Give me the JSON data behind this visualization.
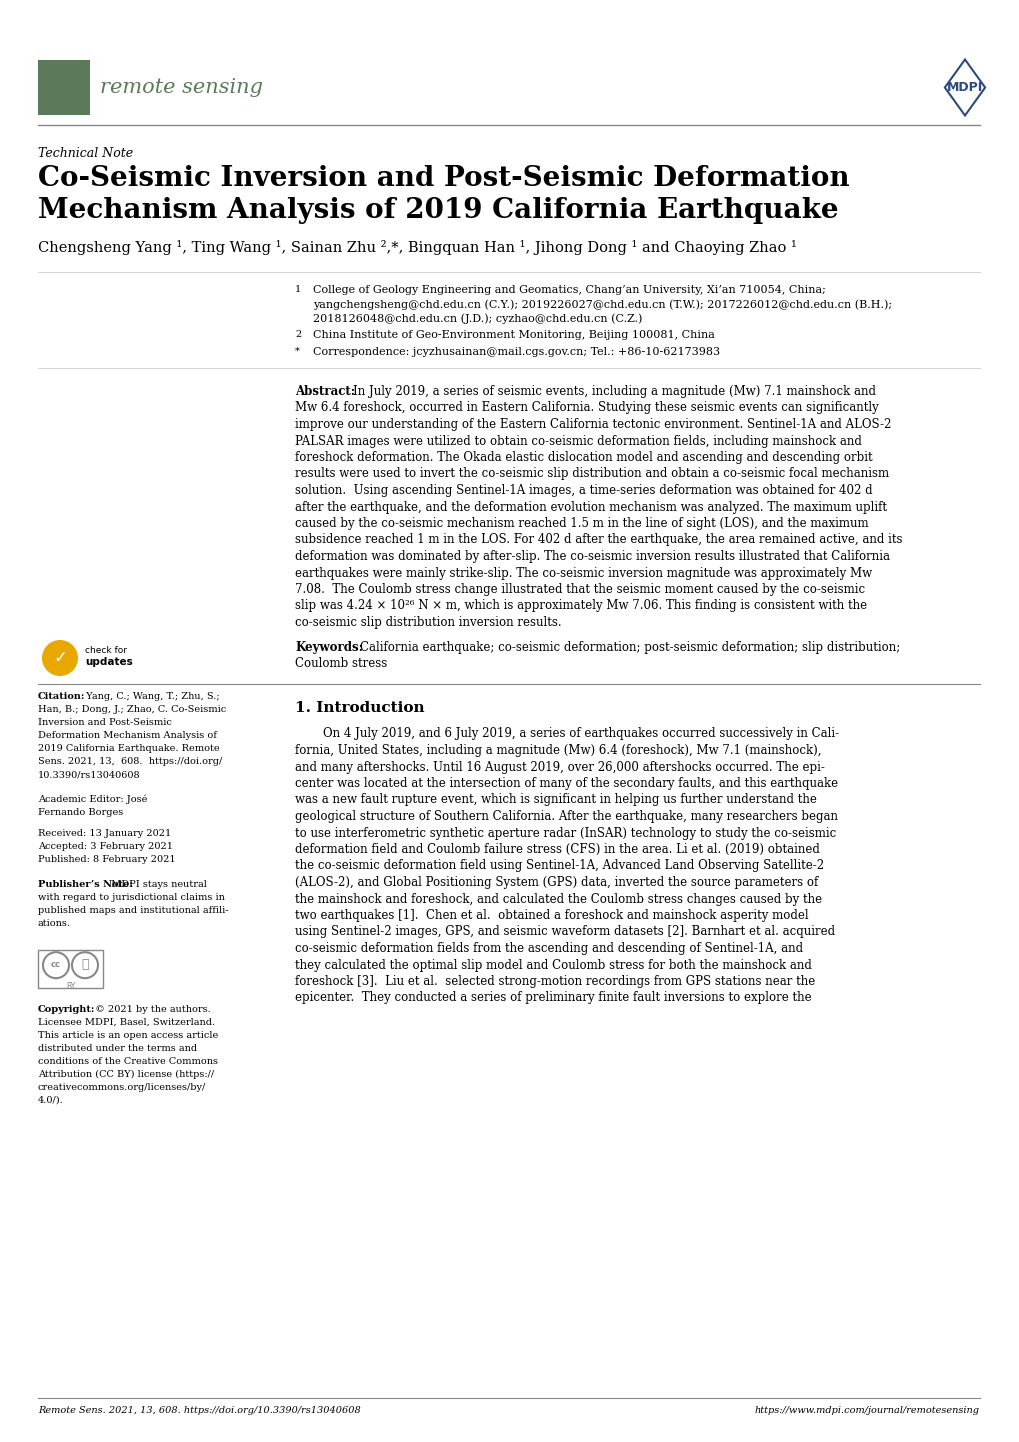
{
  "journal_name": "remote sensing",
  "journal_color": "#5a7a5a",
  "mdpi_color": "#2d4a7a",
  "article_type": "Technical Note",
  "title_line1": "Co-Seismic Inversion and Post-Seismic Deformation",
  "title_line2": "Mechanism Analysis of 2019 California Earthquake",
  "authors": "Chengsheng Yang ¹, Ting Wang ¹, Sainan Zhu ²,*, Bingquan Han ¹, Jihong Dong ¹ and Chaoying Zhao ¹",
  "affil1_num": "1",
  "affil1": "College of Geology Engineering and Geomatics, Chang’an University, Xi’an 710054, China;",
  "affil1b": "yangchengsheng@chd.edu.cn (C.Y.); 2019226027@chd.edu.cn (T.W.); 2017226012@chd.edu.cn (B.H.);",
  "affil1c": "2018126048@chd.edu.cn (J.D.); cyzhao@chd.edu.cn (C.Z.)",
  "affil2_num": "2",
  "affil2": "China Institute of Geo-Environment Monitoring, Beijing 100081, China",
  "affil3_num": "*",
  "affil3": "Correspondence: jcyzhusainan@mail.cgs.gov.cn; Tel.: +86-10-62173983",
  "abstract_label": "Abstract:",
  "abstract_lines": [
    "In July 2019, a series of seismic events, including a magnitude (Mw) 7.1 mainshock and",
    "Mw 6.4 foreshock, occurred in Eastern California. Studying these seismic events can significantly",
    "improve our understanding of the Eastern California tectonic environment. Sentinel-1A and ALOS-2",
    "PALSAR images were utilized to obtain co-seismic deformation fields, including mainshock and",
    "foreshock deformation. The Okada elastic dislocation model and ascending and descending orbit",
    "results were used to invert the co-seismic slip distribution and obtain a co-seismic focal mechanism",
    "solution.  Using ascending Sentinel-1A images, a time-series deformation was obtained for 402 d",
    "after the earthquake, and the deformation evolution mechanism was analyzed. The maximum uplift",
    "caused by the co-seismic mechanism reached 1.5 m in the line of sight (LOS), and the maximum",
    "subsidence reached 1 m in the LOS. For 402 d after the earthquake, the area remained active, and its",
    "deformation was dominated by after-slip. The co-seismic inversion results illustrated that California",
    "earthquakes were mainly strike-slip. The co-seismic inversion magnitude was approximately Mw",
    "7.08.  The Coulomb stress change illustrated that the seismic moment caused by the co-seismic",
    "slip was 4.24 × 10²⁶ N × m, which is approximately Mw 7.06. This finding is consistent with the",
    "co-seismic slip distribution inversion results."
  ],
  "keywords_label": "Keywords:",
  "keywords_line1": "California earthquake; co-seismic deformation; post-seismic deformation; slip distribution;",
  "keywords_line2": "Coulomb stress",
  "section1_title": "1. Introduction",
  "intro_indent": "On 4 July 2019, and 6 July 2019, a series of earthquakes occurred successively in Cali-",
  "intro_lines": [
    "On 4 July 2019, and 6 July 2019, a series of earthquakes occurred successively in Cali-",
    "fornia, United States, including a magnitude (Mw) 6.4 (foreshock), Mw 7.1 (mainshock),",
    "and many aftershocks. Until 16 August 2019, over 26,000 aftershocks occurred. The epi-",
    "center was located at the intersection of many of the secondary faults, and this earthquake",
    "was a new fault rupture event, which is significant in helping us further understand the",
    "geological structure of Southern California. After the earthquake, many researchers began",
    "to use interferometric synthetic aperture radar (InSAR) technology to study the co-seismic",
    "deformation field and Coulomb failure stress (CFS) in the area. Li et al. (2019) obtained",
    "the co-seismic deformation field using Sentinel-1A, Advanced Land Observing Satellite-2",
    "(ALOS-2), and Global Positioning System (GPS) data, inverted the source parameters of",
    "the mainshock and foreshock, and calculated the Coulomb stress changes caused by the",
    "two earthquakes [1].  Chen et al.  obtained a foreshock and mainshock asperity model",
    "using Sentinel-2 images, GPS, and seismic waveform datasets [2]. Barnhart et al. acquired",
    "co-seismic deformation fields from the ascending and descending of Sentinel-1A, and",
    "they calculated the optimal slip model and Coulomb stress for both the mainshock and",
    "foreshock [3].  Liu et al.  selected strong-motion recordings from GPS stations near the",
    "epicenter.  They conducted a series of preliminary finite fault inversions to explore the"
  ],
  "cite_lines": [
    "Citation:  Yang, C.; Wang, T.; Zhu, S.;",
    "Han, B.; Dong, J.; Zhao, C. Co-Seismic",
    "Inversion and Post-Seismic",
    "Deformation Mechanism Analysis of",
    "2019 California Earthquake. Remote",
    "Sens. 2021, 13,  608.  https://doi.org/",
    "10.3390/rs13040608"
  ],
  "acad_editor": "Academic Editor: José",
  "acad_editor2": "Fernando Borges",
  "received": "Received: 13 January 2021",
  "accepted": "Accepted: 3 February 2021",
  "published": "Published: 8 February 2021",
  "pub_note_lines": [
    "Publisher’s Note: MDPI stays neutral",
    "with regard to jurisdictional claims in",
    "published maps and institutional affili-",
    "ations."
  ],
  "copy_lines": [
    "Copyright: © 2021 by the authors.",
    "Licensee MDPI, Basel, Switzerland.",
    "This article is an open access article",
    "distributed under the terms and",
    "conditions of the Creative Commons",
    "Attribution (CC BY) license (https://",
    "creativecommons.org/licenses/by/",
    "4.0/)."
  ],
  "footer_left": "Remote Sens. 2021, 13, 608. https://doi.org/10.3390/rs13040608",
  "footer_right": "https://www.mdpi.com/journal/remotesensing",
  "bg_color": "#ffffff",
  "text_color": "#000000"
}
